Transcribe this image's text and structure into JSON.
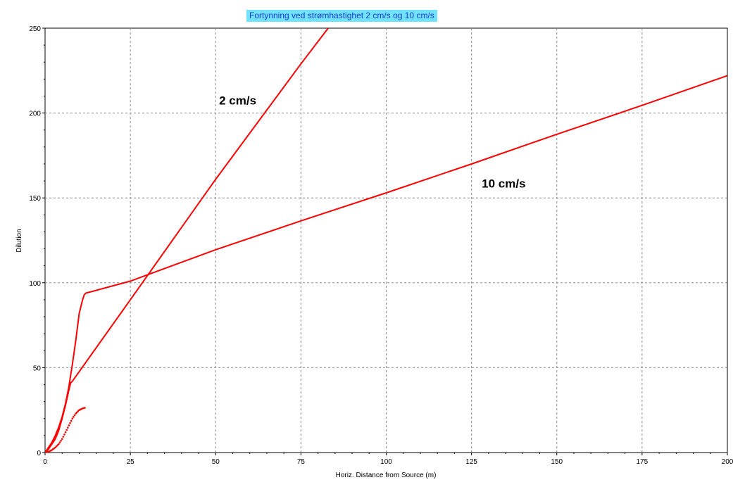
{
  "chart_data": {
    "type": "line",
    "title": "Fortynning ved strømhastighet 2 cm/s og 10 cm/s",
    "xlabel": "Horiz. Distance from Source (m)",
    "ylabel": "Dilution",
    "xlim": [
      0,
      200
    ],
    "ylim": [
      0,
      250
    ],
    "xticks": [
      0,
      25,
      50,
      75,
      100,
      125,
      150,
      175,
      200
    ],
    "yticks": [
      0,
      50,
      100,
      150,
      200,
      250
    ],
    "xtick_labels": [
      "0",
      "25",
      "50",
      "75",
      "100",
      "125",
      "150",
      "175",
      "200"
    ],
    "ytick_labels": [
      "0",
      "50",
      "100",
      "150",
      "200",
      "250"
    ],
    "grid": true,
    "legend": "none",
    "series": [
      {
        "style": "solid",
        "color": "#ff0000",
        "x": [
          0,
          0.5,
          1,
          2,
          3,
          4,
          5,
          6,
          7,
          8,
          9,
          10,
          11,
          11.5,
          12,
          13,
          25,
          50,
          75,
          100,
          125,
          150,
          175,
          200
        ],
        "y": [
          0,
          1.5,
          3,
          6,
          10,
          15,
          21,
          29,
          39,
          52,
          66,
          82,
          90,
          93,
          94,
          94.5,
          101,
          119.5,
          136.5,
          153,
          170,
          187.5,
          204.5,
          222
        ]
      },
      {
        "style": "solid",
        "color": "#ff0000",
        "x": [
          0,
          1,
          2,
          3,
          4,
          5,
          6,
          7,
          7.5,
          8,
          25,
          50,
          75,
          83
        ],
        "y": [
          0,
          2,
          5,
          8,
          13,
          20,
          28,
          37,
          41,
          42,
          90,
          161,
          229,
          250
        ]
      },
      {
        "style": "dotted",
        "color": "#ff0000",
        "x": [
          0,
          1,
          2,
          3,
          4,
          5,
          6,
          7,
          8,
          9,
          10,
          11,
          12
        ],
        "y": [
          0,
          0.5,
          1.5,
          3,
          5,
          8,
          12,
          16,
          20,
          23,
          25,
          26,
          26.5
        ]
      }
    ],
    "annotations": [
      {
        "text": "2 cm/s",
        "x": 51,
        "y": 205
      },
      {
        "text": "10 cm/s",
        "x": 128,
        "y": 156
      }
    ]
  },
  "colors": {
    "title_bg": "#6fe3ff",
    "title_text": "#1a3bd4",
    "line": "#ff0000",
    "grid": "#8c8c8c"
  }
}
